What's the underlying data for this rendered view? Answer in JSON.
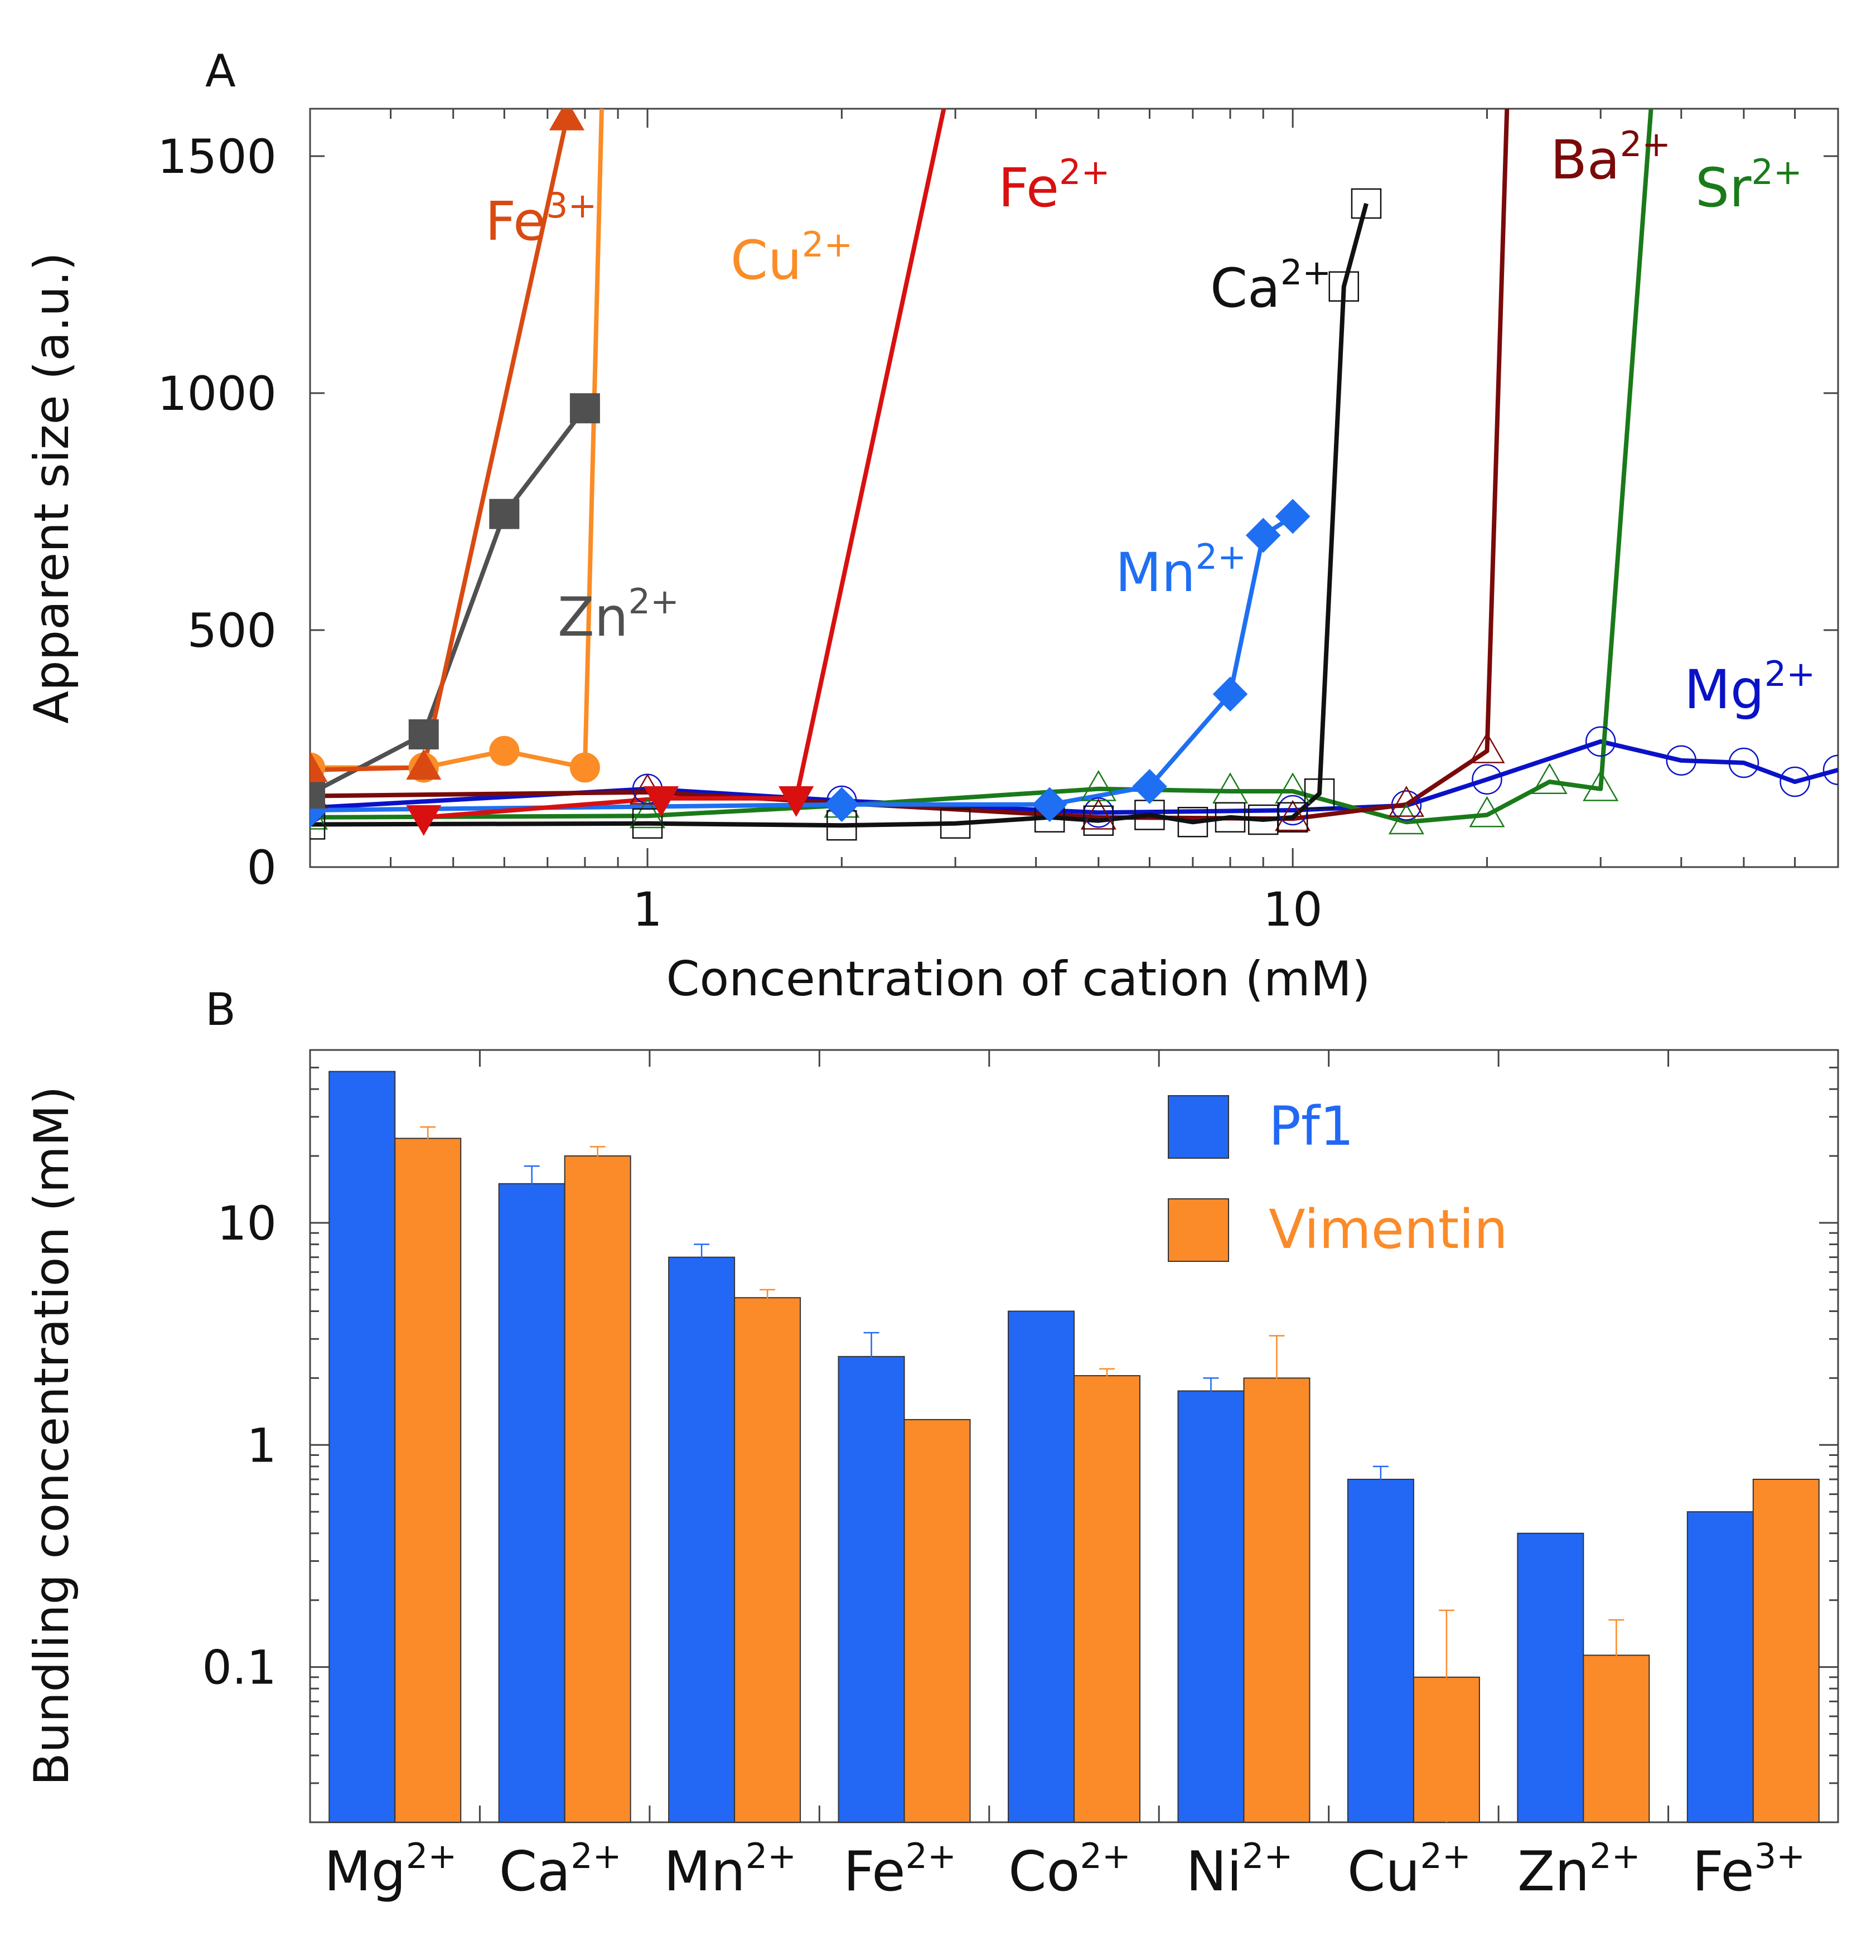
{
  "panel_a": {
    "label": "A",
    "chart_data": {
      "type": "line",
      "xscale": "log",
      "xlim": [
        0.3,
        70
      ],
      "ylim": [
        0,
        1600
      ],
      "xticks": [
        1,
        10
      ],
      "xtick_labels": [
        "1",
        "10"
      ],
      "yticks": [
        0,
        500,
        1000,
        1500
      ],
      "ytick_labels": [
        "0",
        "500",
        "1000",
        "1500"
      ],
      "xlabel": "Concentration of cation (mM)",
      "ylabel": "Apparent size (a.u.)",
      "series": [
        {
          "id": "fe3",
          "name": "Fe",
          "charge": "3+",
          "color": "#d94a12",
          "marker": "triangle-up",
          "filled": true,
          "x": [
            0.3,
            0.45,
            0.75,
            0.76
          ],
          "y": [
            205,
            210,
            1580,
            1620
          ]
        },
        {
          "id": "zn",
          "name": "Zn",
          "charge": "2+",
          "color": "#505050",
          "marker": "square",
          "filled": true,
          "x": [
            0.3,
            0.45,
            0.6,
            0.8
          ],
          "y": [
            155,
            280,
            745,
            968
          ]
        },
        {
          "id": "cu",
          "name": "Cu",
          "charge": "2+",
          "color": "#fb8c26",
          "marker": "circle",
          "filled": true,
          "x": [
            0.3,
            0.45,
            0.6,
            0.8,
            0.85
          ],
          "y": [
            210,
            210,
            245,
            210,
            1620
          ]
        },
        {
          "id": "fe2",
          "name": "Fe",
          "charge": "2+",
          "color": "#d91010",
          "marker": "triangle-down",
          "filled": true,
          "x": [
            0.45,
            1.05,
            1.7,
            2.9
          ],
          "y": [
            105,
            145,
            145,
            1620
          ]
        },
        {
          "id": "mn",
          "name": "Mn",
          "charge": "2+",
          "color": "#1e6ff2",
          "marker": "diamond",
          "filled": true,
          "x": [
            0.3,
            2.0,
            4.2,
            6.0,
            8.0,
            9.0,
            10.0
          ],
          "y": [
            120,
            132,
            132,
            170,
            365,
            700,
            740
          ]
        },
        {
          "id": "ca",
          "name": "Ca",
          "charge": "2+",
          "color": "#111111",
          "marker": "square",
          "filled": false,
          "x": [
            0.3,
            1.0,
            2.0,
            3.0,
            4.2,
            5.0,
            6.0,
            7.0,
            8.0,
            9.0,
            10.0,
            11.0,
            12.0,
            13.0
          ],
          "y": [
            90,
            92,
            88,
            92,
            105,
            98,
            110,
            95,
            105,
            100,
            105,
            155,
            1225,
            1400
          ]
        },
        {
          "id": "ba",
          "name": "Ba",
          "charge": "2+",
          "color": "#7a0a0a",
          "marker": "triangle-up",
          "filled": false,
          "x": [
            0.3,
            1.0,
            5.0,
            10.0,
            15.0,
            20.0,
            21.5
          ],
          "y": [
            150,
            158,
            105,
            102,
            132,
            245,
            1620
          ]
        },
        {
          "id": "sr",
          "name": "Sr",
          "charge": "2+",
          "color": "#1a7a1a",
          "marker": "triangle-up",
          "filled": false,
          "x": [
            0.3,
            1.0,
            2.0,
            5.0,
            8.0,
            10.0,
            15.0,
            20.0,
            25.0,
            30.0,
            36.0
          ],
          "y": [
            105,
            108,
            130,
            165,
            160,
            160,
            95,
            110,
            180,
            165,
            1620
          ]
        },
        {
          "id": "mg",
          "name": "Mg",
          "charge": "2+",
          "color": "#0a12c8",
          "marker": "circle",
          "filled": false,
          "x": [
            0.3,
            1.0,
            2.0,
            5.0,
            10.0,
            15.0,
            20.0,
            30.0,
            40.0,
            50.0,
            60.0,
            70.0
          ],
          "y": [
            125,
            165,
            140,
            115,
            120,
            130,
            185,
            265,
            225,
            220,
            180,
            205
          ]
        }
      ]
    }
  },
  "panel_b": {
    "label": "B",
    "chart_data": {
      "type": "bar",
      "yscale": "log",
      "ylim": [
        0.02,
        60
      ],
      "yticks": [
        0.1,
        1,
        10
      ],
      "ytick_labels": [
        "0.1",
        "1",
        "10"
      ],
      "ylabel": "Bundling concentration (mM)",
      "categories": [
        {
          "name": "Mg",
          "charge": "2+"
        },
        {
          "name": "Ca",
          "charge": "2+"
        },
        {
          "name": "Mn",
          "charge": "2+"
        },
        {
          "name": "Fe",
          "charge": "2+"
        },
        {
          "name": "Co",
          "charge": "2+"
        },
        {
          "name": "Ni",
          "charge": "2+"
        },
        {
          "name": "Cu",
          "charge": "2+"
        },
        {
          "name": "Zn",
          "charge": "2+"
        },
        {
          "name": "Fe",
          "charge": "3+"
        }
      ],
      "series": [
        {
          "name": "Pf1",
          "color": "#2268f5",
          "values": [
            48,
            15,
            7,
            2.5,
            4,
            1.75,
            0.7,
            0.4,
            0.5
          ],
          "errors": [
            null,
            3,
            1,
            0.7,
            null,
            0.25,
            0.1,
            null,
            null
          ]
        },
        {
          "name": "Vimentin",
          "color": "#fb8a29",
          "values": [
            24,
            20,
            4.6,
            1.3,
            2.05,
            2.0,
            0.09,
            0.113,
            0.7
          ],
          "errors": [
            3,
            2,
            0.4,
            null,
            0.15,
            1.1,
            0.09,
            0.05,
            null
          ]
        }
      ],
      "legend": {
        "position": "top-right",
        "entries": [
          "Pf1",
          "Vimentin"
        ]
      }
    }
  }
}
